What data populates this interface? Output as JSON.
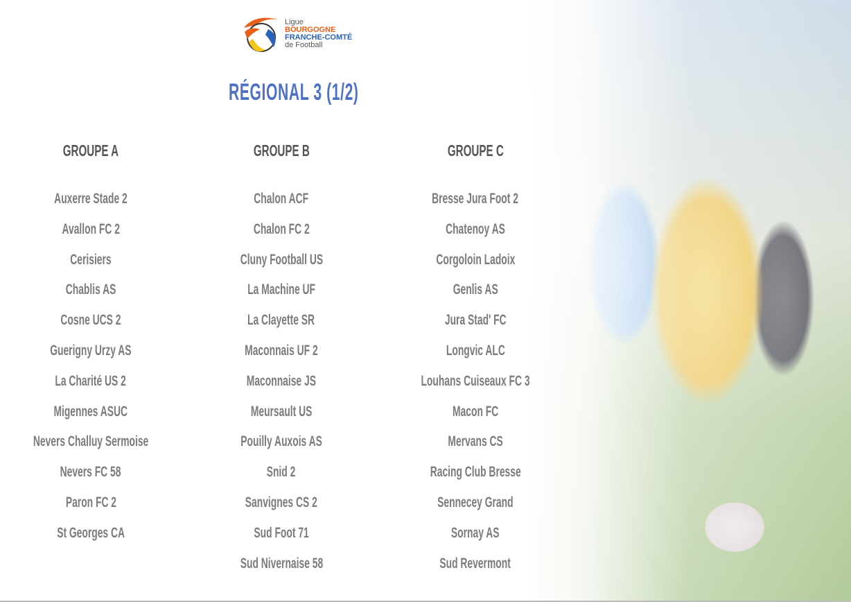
{
  "logo": {
    "line1": "Ligue",
    "line2": "BOURGOGNE",
    "line3": "FRANCHE-COMTÉ",
    "line4": "de Football"
  },
  "title": "RÉGIONAL 3 (1/2)",
  "groups": [
    {
      "name": "GROUPE A",
      "teams": [
        "Auxerre Stade 2",
        "Avallon FC 2",
        "Cerisiers",
        "Chablis AS",
        "Cosne UCS 2",
        "Guerigny Urzy AS",
        "La Charité US 2",
        "Migennes ASUC",
        "Nevers Challuy Sermoise",
        "Nevers FC 58",
        "Paron FC 2",
        "St Georges CA"
      ]
    },
    {
      "name": "GROUPE B",
      "teams": [
        "Chalon ACF",
        "Chalon FC 2",
        "Cluny Football US",
        "La Machine UF",
        "La Clayette SR",
        "Maconnais UF 2",
        "Maconnaise JS",
        "Meursault US",
        "Pouilly Auxois AS",
        "Snid 2",
        "Sanvignes CS 2",
        "Sud Foot 71",
        "Sud Nivernaise 58"
      ]
    },
    {
      "name": "GROUPE C",
      "teams": [
        "Bresse Jura Foot 2",
        "Chatenoy AS",
        "Corgoloin Ladoix",
        "Genlis AS",
        "Jura Stad' FC",
        "Longvic ALC",
        "Louhans Cuiseaux FC 3",
        "Macon FC",
        "Mervans CS",
        "Racing Club Bresse",
        "Sennecey Grand",
        "Sornay AS",
        "Sud Revermont"
      ]
    }
  ],
  "colors": {
    "title": "#4d72c4",
    "header": "#555555",
    "team": "#7b7b7b",
    "logo_orange": "#e8611a",
    "logo_blue": "#2a62b8"
  }
}
